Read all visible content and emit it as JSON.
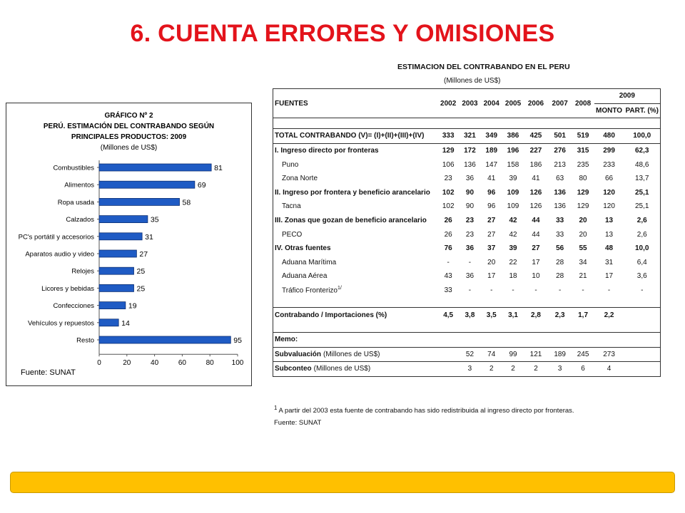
{
  "slide": {
    "title": "6. CUENTA ERRORES Y OMISIONES"
  },
  "chart_data": {
    "type": "bar",
    "orientation": "horizontal",
    "title_lines": [
      "GRÁFICO Nº 2",
      "PERÚ. ESTIMACIÓN DEL CONTRABANDO SEGÚN",
      "PRINCIPALES PRODUCTOS: 2009"
    ],
    "unit": "(Millones de US$)",
    "categories": [
      "Combustibles",
      "Alimentos",
      "Ropa usada",
      "Calzados",
      "PC's portátil y accesorios",
      "Aparatos audio y video",
      "Relojes",
      "Licores y bebidas",
      "Confecciones",
      "Vehículos y repuestos",
      "Resto"
    ],
    "values": [
      81,
      69,
      58,
      35,
      31,
      27,
      25,
      25,
      19,
      14,
      95
    ],
    "xlim": [
      0,
      100
    ],
    "xticks": [
      "0",
      "20",
      "40",
      "60",
      "80",
      "100"
    ],
    "bar_color": "#1f5bc4",
    "source": "Fuente: SUNAT"
  },
  "table": {
    "title": "ESTIMACION DEL CONTRABANDO EN EL PERU",
    "unit": "(Millones de US$)",
    "header": {
      "fuentes": "FUENTES",
      "years": [
        "2002",
        "2003",
        "2004",
        "2005",
        "2006",
        "2007",
        "2008"
      ],
      "group": "2009",
      "monto": "MONTO",
      "part": "PART. (%)"
    },
    "rows": [
      {
        "label": "TOTAL CONTRABANDO (V)= (I)+(II)+(III)+(IV)",
        "cells": [
          "333",
          "321",
          "349",
          "386",
          "425",
          "501",
          "519",
          "480",
          "100,0"
        ],
        "style": "bold"
      },
      {
        "label": "I. Ingreso directo por fronteras",
        "cells": [
          "129",
          "172",
          "189",
          "196",
          "227",
          "276",
          "315",
          "299",
          "62,3"
        ],
        "style": "bold"
      },
      {
        "label": "Puno",
        "cells": [
          "106",
          "136",
          "147",
          "158",
          "186",
          "213",
          "235",
          "233",
          "48,6"
        ],
        "style": "sub"
      },
      {
        "label": "Zona Norte",
        "cells": [
          "23",
          "36",
          "41",
          "39",
          "41",
          "63",
          "80",
          "66",
          "13,7"
        ],
        "style": "sub"
      },
      {
        "label": "II. Ingreso por frontera y beneficio arancelario",
        "cells": [
          "102",
          "90",
          "96",
          "109",
          "126",
          "136",
          "129",
          "120",
          "25,1"
        ],
        "style": "bold"
      },
      {
        "label": "Tacna",
        "cells": [
          "102",
          "90",
          "96",
          "109",
          "126",
          "136",
          "129",
          "120",
          "25,1"
        ],
        "style": "sub"
      },
      {
        "label": "III. Zonas que gozan de beneficio arancelario",
        "cells": [
          "26",
          "23",
          "27",
          "42",
          "44",
          "33",
          "20",
          "13",
          "2,6"
        ],
        "style": "bold"
      },
      {
        "label": "PECO",
        "cells": [
          "26",
          "23",
          "27",
          "42",
          "44",
          "33",
          "20",
          "13",
          "2,6"
        ],
        "style": "sub"
      },
      {
        "label": "IV. Otras fuentes",
        "cells": [
          "76",
          "36",
          "37",
          "39",
          "27",
          "56",
          "55",
          "48",
          "10,0"
        ],
        "style": "bold"
      },
      {
        "label": "Aduana Marítima",
        "cells": [
          "-",
          "-",
          "20",
          "22",
          "17",
          "28",
          "34",
          "31",
          "6,4"
        ],
        "style": "sub"
      },
      {
        "label": "Aduana Aérea",
        "cells": [
          "43",
          "36",
          "17",
          "18",
          "10",
          "28",
          "21",
          "17",
          "3,6"
        ],
        "style": "sub"
      },
      {
        "label": "Tráfico Fronterizo",
        "sup": "1/",
        "cells": [
          "33",
          "-",
          "-",
          "-",
          "-",
          "-",
          "-",
          "-",
          "-"
        ],
        "style": "sub"
      },
      {
        "label": "Contrabando / Importaciones (%)",
        "cells": [
          "4,5",
          "3,8",
          "3,5",
          "3,1",
          "2,8",
          "2,3",
          "1,7",
          "2,2",
          ""
        ],
        "style": "bold"
      }
    ],
    "memo": "Memo:",
    "memo_rows": [
      {
        "label": "Subvaluación",
        "unit": "(Millones de US$)",
        "cells": [
          "",
          "52",
          "74",
          "99",
          "121",
          "189",
          "245",
          "273",
          ""
        ]
      },
      {
        "label": "Subconteo",
        "unit": "(Millones de US$)",
        "cells": [
          "",
          "3",
          "2",
          "2",
          "2",
          "3",
          "6",
          "4",
          ""
        ]
      }
    ],
    "footnote_mark": "1",
    "footnote": "A partir del 2003 esta fuente de contrabando has sido redistribuida al ingreso directo por fronteras.",
    "source": "Fuente: SUNAT"
  }
}
